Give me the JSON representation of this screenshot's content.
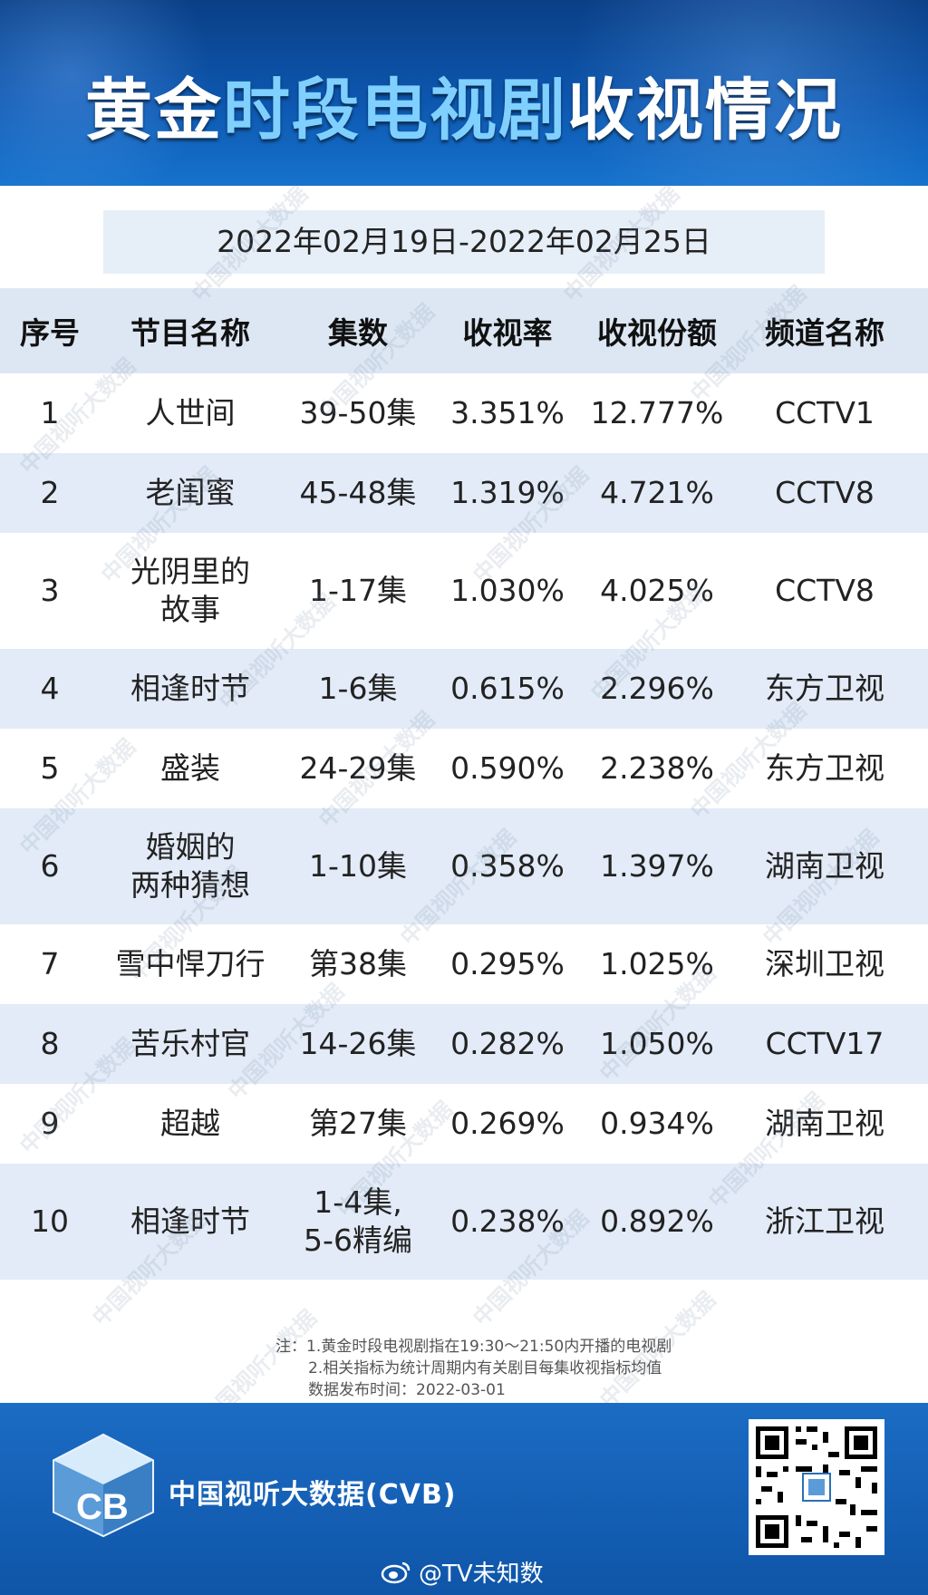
{
  "title": {
    "part1": "黄金",
    "part2": "时段",
    "part3": "电视剧",
    "part4": "收视情况"
  },
  "date_range": "2022年02月19日-2022年02月25日",
  "table": {
    "headers": [
      "序号",
      "节目名称",
      "集数",
      "收视率",
      "收视份额",
      "频道名称"
    ],
    "rows": [
      {
        "rank": "1",
        "name1": "人世间",
        "name2": "",
        "ep1": "39-50集",
        "ep2": "",
        "rating": "3.351%",
        "share": "12.777%",
        "channel": "CCTV1"
      },
      {
        "rank": "2",
        "name1": "老闺蜜",
        "name2": "",
        "ep1": "45-48集",
        "ep2": "",
        "rating": "1.319%",
        "share": "4.721%",
        "channel": "CCTV8"
      },
      {
        "rank": "3",
        "name1": "光阴里的",
        "name2": "故事",
        "ep1": "1-17集",
        "ep2": "",
        "rating": "1.030%",
        "share": "4.025%",
        "channel": "CCTV8"
      },
      {
        "rank": "4",
        "name1": "相逢时节",
        "name2": "",
        "ep1": "1-6集",
        "ep2": "",
        "rating": "0.615%",
        "share": "2.296%",
        "channel": "东方卫视"
      },
      {
        "rank": "5",
        "name1": "盛装",
        "name2": "",
        "ep1": "24-29集",
        "ep2": "",
        "rating": "0.590%",
        "share": "2.238%",
        "channel": "东方卫视"
      },
      {
        "rank": "6",
        "name1": "婚姻的",
        "name2": "两种猜想",
        "ep1": "1-10集",
        "ep2": "",
        "rating": "0.358%",
        "share": "1.397%",
        "channel": "湖南卫视"
      },
      {
        "rank": "7",
        "name1": "雪中悍刀行",
        "name2": "",
        "ep1": "第38集",
        "ep2": "",
        "rating": "0.295%",
        "share": "1.025%",
        "channel": "深圳卫视"
      },
      {
        "rank": "8",
        "name1": "苦乐村官",
        "name2": "",
        "ep1": "14-26集",
        "ep2": "",
        "rating": "0.282%",
        "share": "1.050%",
        "channel": "CCTV17"
      },
      {
        "rank": "9",
        "name1": "超越",
        "name2": "",
        "ep1": "第27集",
        "ep2": "",
        "rating": "0.269%",
        "share": "0.934%",
        "channel": "湖南卫视"
      },
      {
        "rank": "10",
        "name1": "相逢时节",
        "name2": "",
        "ep1": "1-4集,",
        "ep2": "5-6精编",
        "rating": "0.238%",
        "share": "0.892%",
        "channel": "浙江卫视"
      }
    ]
  },
  "notes": [
    "注：1.黄金时段电视剧指在19:30～21:50内开播的电视剧",
    "2.相关指标为统计周期内有关剧目每集收视指标均值",
    "数据发布时间：2022-03-01"
  ],
  "footer": {
    "logo_text": "CB",
    "brand": "中国视听大数据(CVB)",
    "weibo_handle": "@TV未知数"
  },
  "watermark": "中国视听大数据",
  "colors": {
    "header_blue": "#0d57b0",
    "title_cyan": "#7fd0ff",
    "row_alt": "#e2ebf7"
  }
}
